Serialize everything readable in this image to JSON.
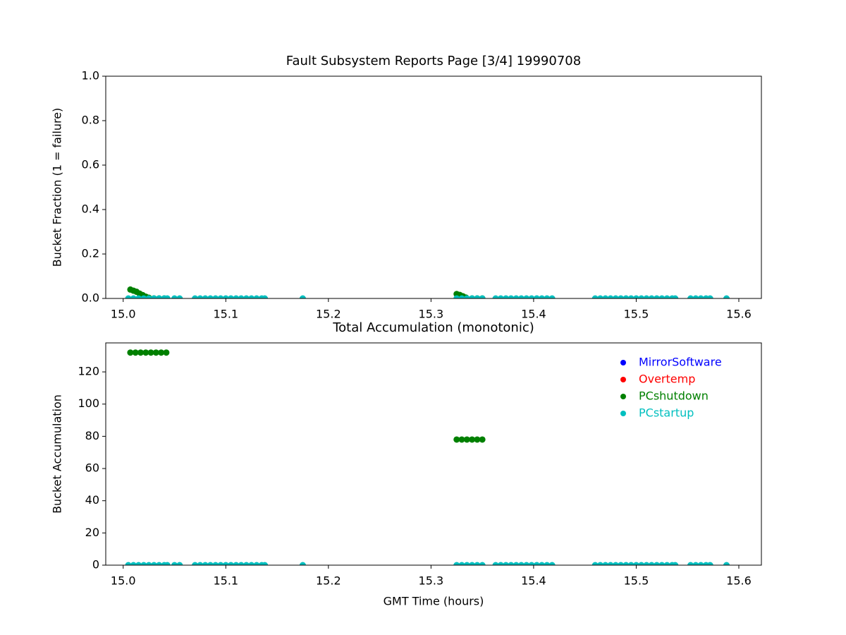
{
  "chart_data": [
    {
      "type": "scatter",
      "title": "Fault Subsystem Reports Page [3/4] 19990708",
      "ylabel": "Bucket Fraction (1 = failure)",
      "xlim": [
        14.983,
        15.622
      ],
      "xticks": [
        {
          "value": 15.0,
          "label": "15.0"
        },
        15.1,
        15.2,
        15.3,
        15.4,
        15.5,
        15.6
      ],
      "ylim": [
        0,
        1
      ],
      "yticks": [
        {
          "value": 0,
          "label": "0.0"
        },
        0.2,
        0.4,
        0.6,
        0.8,
        {
          "value": 1,
          "label": "1.0"
        }
      ],
      "series": [
        {
          "name": "MirrorSoftware",
          "color": "#0000ff",
          "x": [],
          "values": []
        },
        {
          "name": "Overtemp",
          "color": "#ff0000",
          "x": [],
          "values": []
        },
        {
          "name": "PCshutdown",
          "color": "#008000",
          "x": [
            15.007,
            15.01,
            15.013,
            15.016,
            15.019,
            15.022,
            15.025,
            15.03,
            15.035,
            15.04,
            15.325,
            15.328,
            15.331,
            15.334,
            15.34,
            15.345,
            15.35
          ],
          "values": [
            0.04,
            0.035,
            0.03,
            0.022,
            0.015,
            0.008,
            0.003,
            0,
            0,
            0,
            0.02,
            0.016,
            0.01,
            0.004,
            0,
            0,
            0
          ]
        },
        {
          "name": "PCstartup",
          "color": "#00bfbf",
          "x": [
            15.005,
            15.01,
            15.015,
            15.02,
            15.025,
            15.03,
            15.035,
            15.04,
            15.043,
            15.05,
            15.055,
            15.07,
            15.075,
            15.08,
            15.085,
            15.09,
            15.095,
            15.1,
            15.105,
            15.11,
            15.115,
            15.12,
            15.125,
            15.13,
            15.135,
            15.138,
            15.175,
            15.325,
            15.33,
            15.335,
            15.34,
            15.345,
            15.35,
            15.363,
            15.368,
            15.373,
            15.378,
            15.383,
            15.388,
            15.393,
            15.398,
            15.403,
            15.408,
            15.413,
            15.418,
            15.46,
            15.465,
            15.47,
            15.475,
            15.48,
            15.485,
            15.49,
            15.495,
            15.5,
            15.505,
            15.51,
            15.515,
            15.52,
            15.525,
            15.53,
            15.535,
            15.538,
            15.553,
            15.558,
            15.563,
            15.568,
            15.572,
            15.588
          ],
          "values": [
            0,
            0,
            0,
            0,
            0,
            0,
            0,
            0,
            0,
            0,
            0,
            0,
            0,
            0,
            0,
            0,
            0,
            0,
            0,
            0,
            0,
            0,
            0,
            0,
            0,
            0,
            0,
            0,
            0,
            0,
            0,
            0,
            0,
            0,
            0,
            0,
            0,
            0,
            0,
            0,
            0,
            0,
            0,
            0,
            0,
            0,
            0,
            0,
            0,
            0,
            0,
            0,
            0,
            0,
            0,
            0,
            0,
            0,
            0,
            0,
            0,
            0,
            0,
            0,
            0,
            0,
            0,
            0
          ]
        }
      ]
    },
    {
      "type": "scatter",
      "title": "Total Accumulation (monotonic)",
      "xlabel": "GMT Time (hours)",
      "ylabel": "Bucket Accumulation",
      "xlim": [
        14.983,
        15.622
      ],
      "xticks": [
        {
          "value": 15.0,
          "label": "15.0"
        },
        15.1,
        15.2,
        15.3,
        15.4,
        15.5,
        15.6
      ],
      "ylim": [
        0,
        138
      ],
      "yticks": [
        0,
        20,
        40,
        60,
        80,
        100,
        120
      ],
      "legend": "upper right",
      "series": [
        {
          "name": "MirrorSoftware",
          "color": "#0000ff",
          "x": [],
          "values": []
        },
        {
          "name": "Overtemp",
          "color": "#ff0000",
          "x": [],
          "values": []
        },
        {
          "name": "PCshutdown",
          "color": "#008000",
          "x": [
            15.007,
            15.012,
            15.017,
            15.022,
            15.027,
            15.032,
            15.037,
            15.042,
            15.325,
            15.33,
            15.335,
            15.34,
            15.345,
            15.35
          ],
          "values": [
            132,
            132,
            132,
            132,
            132,
            132,
            132,
            132,
            78,
            78,
            78,
            78,
            78,
            78
          ]
        },
        {
          "name": "PCstartup",
          "color": "#00bfbf",
          "x": [
            15.005,
            15.01,
            15.015,
            15.02,
            15.025,
            15.03,
            15.035,
            15.04,
            15.043,
            15.05,
            15.055,
            15.07,
            15.075,
            15.08,
            15.085,
            15.09,
            15.095,
            15.1,
            15.105,
            15.11,
            15.115,
            15.12,
            15.125,
            15.13,
            15.135,
            15.138,
            15.175,
            15.325,
            15.33,
            15.335,
            15.34,
            15.345,
            15.35,
            15.363,
            15.368,
            15.373,
            15.378,
            15.383,
            15.388,
            15.393,
            15.398,
            15.403,
            15.408,
            15.413,
            15.418,
            15.46,
            15.465,
            15.47,
            15.475,
            15.48,
            15.485,
            15.49,
            15.495,
            15.5,
            15.505,
            15.51,
            15.515,
            15.52,
            15.525,
            15.53,
            15.535,
            15.538,
            15.553,
            15.558,
            15.563,
            15.568,
            15.572,
            15.588
          ],
          "values": [
            0,
            0,
            0,
            0,
            0,
            0,
            0,
            0,
            0,
            0,
            0,
            0,
            0,
            0,
            0,
            0,
            0,
            0,
            0,
            0,
            0,
            0,
            0,
            0,
            0,
            0,
            0,
            0,
            0,
            0,
            0,
            0,
            0,
            0,
            0,
            0,
            0,
            0,
            0,
            0,
            0,
            0,
            0,
            0,
            0,
            0,
            0,
            0,
            0,
            0,
            0,
            0,
            0,
            0,
            0,
            0,
            0,
            0,
            0,
            0,
            0,
            0,
            0,
            0,
            0,
            0,
            0,
            0
          ]
        }
      ]
    }
  ]
}
